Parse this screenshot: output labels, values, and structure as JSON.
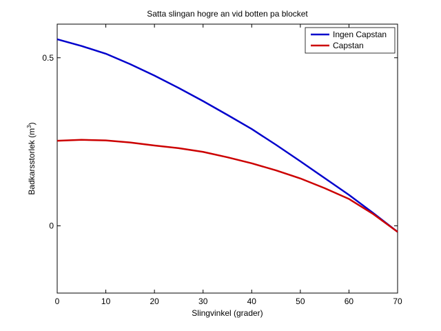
{
  "chart_data": {
    "type": "line",
    "title": "Satta slingan hogre an vid botten pa blocket",
    "xlabel": "Slingvinkel (grader)",
    "ylabel": "Badkarsstorlek (m",
    "ylabel_sup": "3",
    "ylabel_end": ")",
    "xlim": [
      0,
      70
    ],
    "ylim": [
      -0.2,
      0.6
    ],
    "xticks": [
      0,
      10,
      20,
      30,
      40,
      50,
      60,
      70
    ],
    "yticks": [
      0,
      0.5
    ],
    "ytick_labels": [
      "0",
      "0.5"
    ],
    "legend_position": "top-right",
    "x": [
      0,
      5,
      10,
      15,
      20,
      25,
      30,
      35,
      40,
      45,
      50,
      55,
      60,
      65,
      70
    ],
    "series": [
      {
        "name": "Ingen Capstan",
        "color": "#0000cc",
        "values": [
          0.555,
          0.535,
          0.512,
          0.481,
          0.447,
          0.41,
          0.371,
          0.33,
          0.288,
          0.241,
          0.192,
          0.142,
          0.092,
          0.038,
          -0.018
        ]
      },
      {
        "name": "Capstan",
        "color": "#cc0000",
        "values": [
          0.253,
          0.256,
          0.254,
          0.248,
          0.239,
          0.231,
          0.22,
          0.204,
          0.186,
          0.165,
          0.141,
          0.112,
          0.08,
          0.035,
          -0.018
        ]
      }
    ]
  }
}
